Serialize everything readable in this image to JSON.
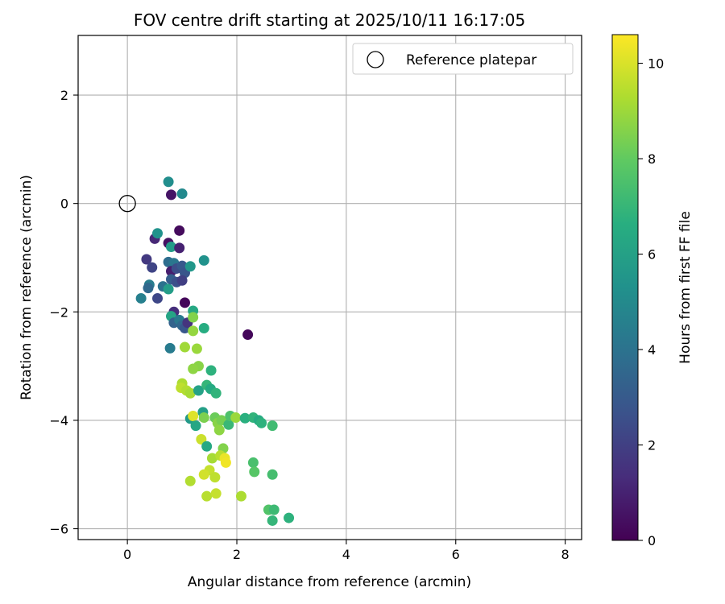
{
  "chart_data": {
    "type": "scatter",
    "title": "FOV centre drift starting at 2025/10/11 16:17:05",
    "xlabel": "Angular distance from reference (arcmin)",
    "ylabel": "Rotation from reference (arcmin)",
    "xlim": [
      -0.9,
      8.3
    ],
    "ylim": [
      -6.2,
      3.1
    ],
    "xticks": [
      0,
      2,
      4,
      6,
      8
    ],
    "yticks": [
      2,
      0,
      -2,
      -4,
      -6
    ],
    "ytick_labels": [
      "2",
      "0",
      "−2",
      "−4",
      "−6"
    ],
    "grid": true,
    "legend": {
      "position": "top-right",
      "label": "Reference platepar"
    },
    "reference_point": {
      "x": 0,
      "y": 0
    },
    "colorbar": {
      "label": "Hours from first FF file",
      "min": 0,
      "max": 10.6,
      "ticks": [
        0,
        2,
        4,
        6,
        8,
        10
      ],
      "colormap": "viridis"
    },
    "points": [
      {
        "x": 0.75,
        "y": 0.4,
        "h": 5.2
      },
      {
        "x": 0.8,
        "y": 0.16,
        "h": 0.6
      },
      {
        "x": 1.0,
        "y": 0.18,
        "h": 5.0
      },
      {
        "x": 0.95,
        "y": -0.5,
        "h": 0.3
      },
      {
        "x": 0.5,
        "y": -0.65,
        "h": 1.2
      },
      {
        "x": 0.55,
        "y": -0.55,
        "h": 5.4
      },
      {
        "x": 0.75,
        "y": -0.73,
        "h": 0.5
      },
      {
        "x": 0.8,
        "y": -0.8,
        "h": 5.8
      },
      {
        "x": 0.95,
        "y": -0.82,
        "h": 1.0
      },
      {
        "x": 0.35,
        "y": -1.03,
        "h": 1.8
      },
      {
        "x": 0.45,
        "y": -1.18,
        "h": 2.2
      },
      {
        "x": 0.75,
        "y": -1.08,
        "h": 3.8
      },
      {
        "x": 0.85,
        "y": -1.1,
        "h": 4.2
      },
      {
        "x": 0.8,
        "y": -1.25,
        "h": 0.9
      },
      {
        "x": 0.9,
        "y": -1.2,
        "h": 2.5
      },
      {
        "x": 1.0,
        "y": -1.15,
        "h": 3.0
      },
      {
        "x": 1.05,
        "y": -1.28,
        "h": 2.8
      },
      {
        "x": 1.15,
        "y": -1.16,
        "h": 5.6
      },
      {
        "x": 1.4,
        "y": -1.05,
        "h": 5.4
      },
      {
        "x": 0.4,
        "y": -1.5,
        "h": 4.5
      },
      {
        "x": 0.38,
        "y": -1.56,
        "h": 3.6
      },
      {
        "x": 0.65,
        "y": -1.53,
        "h": 4.0
      },
      {
        "x": 0.75,
        "y": -1.58,
        "h": 5.9
      },
      {
        "x": 0.8,
        "y": -1.4,
        "h": 3.2
      },
      {
        "x": 0.9,
        "y": -1.45,
        "h": 2.6
      },
      {
        "x": 1.0,
        "y": -1.42,
        "h": 2.0
      },
      {
        "x": 0.25,
        "y": -1.75,
        "h": 4.6
      },
      {
        "x": 0.55,
        "y": -1.75,
        "h": 2.3
      },
      {
        "x": 1.05,
        "y": -1.83,
        "h": 0.2
      },
      {
        "x": 0.85,
        "y": -2.0,
        "h": 1.4
      },
      {
        "x": 0.8,
        "y": -2.08,
        "h": 6.2
      },
      {
        "x": 0.85,
        "y": -2.2,
        "h": 3.4
      },
      {
        "x": 0.95,
        "y": -2.15,
        "h": 4.3
      },
      {
        "x": 1.0,
        "y": -2.25,
        "h": 3.6
      },
      {
        "x": 1.05,
        "y": -2.3,
        "h": 2.9
      },
      {
        "x": 1.1,
        "y": -2.2,
        "h": 1.6
      },
      {
        "x": 1.2,
        "y": -1.98,
        "h": 6.4
      },
      {
        "x": 1.2,
        "y": -2.1,
        "h": 8.6
      },
      {
        "x": 1.2,
        "y": -2.35,
        "h": 8.9
      },
      {
        "x": 1.4,
        "y": -2.3,
        "h": 6.6
      },
      {
        "x": 2.2,
        "y": -2.42,
        "h": 0.2
      },
      {
        "x": 0.78,
        "y": -2.67,
        "h": 4.4
      },
      {
        "x": 1.05,
        "y": -2.65,
        "h": 9.1
      },
      {
        "x": 1.27,
        "y": -2.68,
        "h": 9.0
      },
      {
        "x": 1.3,
        "y": -3.0,
        "h": 8.7
      },
      {
        "x": 1.2,
        "y": -3.05,
        "h": 8.8
      },
      {
        "x": 1.53,
        "y": -3.08,
        "h": 6.8
      },
      {
        "x": 1.0,
        "y": -3.32,
        "h": 9.3
      },
      {
        "x": 0.98,
        "y": -3.4,
        "h": 9.6
      },
      {
        "x": 1.08,
        "y": -3.45,
        "h": 9.4
      },
      {
        "x": 1.15,
        "y": -3.5,
        "h": 9.2
      },
      {
        "x": 1.3,
        "y": -3.45,
        "h": 6.1
      },
      {
        "x": 1.45,
        "y": -3.35,
        "h": 7.0
      },
      {
        "x": 1.52,
        "y": -3.42,
        "h": 6.5
      },
      {
        "x": 1.62,
        "y": -3.5,
        "h": 6.9
      },
      {
        "x": 1.15,
        "y": -3.97,
        "h": 5.7
      },
      {
        "x": 1.2,
        "y": -3.92,
        "h": 10.1
      },
      {
        "x": 1.25,
        "y": -4.1,
        "h": 6.3
      },
      {
        "x": 1.38,
        "y": -3.85,
        "h": 6.0
      },
      {
        "x": 1.4,
        "y": -3.95,
        "h": 8.5
      },
      {
        "x": 1.6,
        "y": -3.95,
        "h": 8.2
      },
      {
        "x": 1.65,
        "y": -4.05,
        "h": 8.7
      },
      {
        "x": 1.72,
        "y": -4.0,
        "h": 8.4
      },
      {
        "x": 1.68,
        "y": -4.18,
        "h": 8.8
      },
      {
        "x": 1.85,
        "y": -4.08,
        "h": 7.1
      },
      {
        "x": 1.88,
        "y": -3.92,
        "h": 7.6
      },
      {
        "x": 1.98,
        "y": -3.95,
        "h": 9.0
      },
      {
        "x": 2.15,
        "y": -3.96,
        "h": 6.7
      },
      {
        "x": 2.3,
        "y": -3.95,
        "h": 6.9
      },
      {
        "x": 2.4,
        "y": -4.0,
        "h": 6.5
      },
      {
        "x": 2.45,
        "y": -4.05,
        "h": 6.8
      },
      {
        "x": 2.65,
        "y": -4.1,
        "h": 7.3
      },
      {
        "x": 1.35,
        "y": -4.35,
        "h": 9.8
      },
      {
        "x": 1.45,
        "y": -4.48,
        "h": 6.4
      },
      {
        "x": 1.75,
        "y": -4.52,
        "h": 8.6
      },
      {
        "x": 1.55,
        "y": -4.7,
        "h": 9.2
      },
      {
        "x": 1.7,
        "y": -4.65,
        "h": 9.5
      },
      {
        "x": 1.78,
        "y": -4.7,
        "h": 10.3
      },
      {
        "x": 1.8,
        "y": -4.78,
        "h": 10.4
      },
      {
        "x": 2.3,
        "y": -4.78,
        "h": 7.5
      },
      {
        "x": 2.32,
        "y": -4.95,
        "h": 7.8
      },
      {
        "x": 1.5,
        "y": -4.92,
        "h": 9.7
      },
      {
        "x": 1.4,
        "y": -5.0,
        "h": 9.9
      },
      {
        "x": 1.6,
        "y": -5.05,
        "h": 9.6
      },
      {
        "x": 2.65,
        "y": -5.0,
        "h": 7.4
      },
      {
        "x": 1.15,
        "y": -5.12,
        "h": 9.4
      },
      {
        "x": 1.45,
        "y": -5.4,
        "h": 9.5
      },
      {
        "x": 1.62,
        "y": -5.35,
        "h": 9.7
      },
      {
        "x": 2.08,
        "y": -5.4,
        "h": 9.3
      },
      {
        "x": 2.58,
        "y": -5.65,
        "h": 7.7
      },
      {
        "x": 2.68,
        "y": -5.65,
        "h": 7.2
      },
      {
        "x": 2.65,
        "y": -5.85,
        "h": 7.0
      },
      {
        "x": 2.95,
        "y": -5.8,
        "h": 6.8
      }
    ]
  }
}
